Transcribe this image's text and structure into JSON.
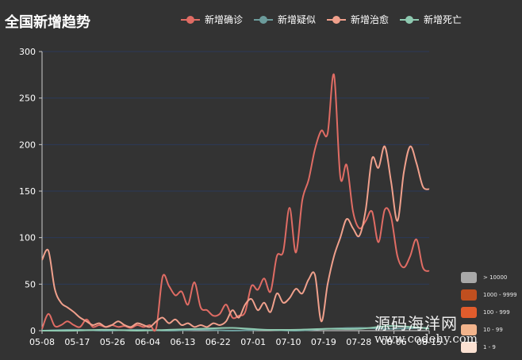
{
  "page": {
    "title": "全国新增趋势",
    "watermark_cn": "源码海洋网",
    "watermark_url": "www.codehy.com"
  },
  "legend": [
    {
      "name": "新增确诊",
      "color": "#e06c64"
    },
    {
      "name": "新增疑似",
      "color": "#6c9c9c"
    },
    {
      "name": "新增治愈",
      "color": "#f0a08c"
    },
    {
      "name": "新增死亡",
      "color": "#8ec9b0"
    }
  ],
  "visual_map": [
    {
      "label": "> 10000",
      "color": "#a8a8a8"
    },
    {
      "label": "1000 - 9999",
      "color": "#c04f1f"
    },
    {
      "label": "100 - 999",
      "color": "#e15c2c"
    },
    {
      "label": "10 - 99",
      "color": "#f2b48c"
    },
    {
      "label": "1 - 9",
      "color": "#fbe1d2"
    }
  ],
  "chart_data": {
    "type": "line",
    "title": "全国新增趋势",
    "categories": [
      "05-08",
      "05-17",
      "05-26",
      "06-04",
      "06-13",
      "06-22",
      "07-01",
      "07-10",
      "07-19",
      "07-28",
      "08-06",
      "08-15"
    ],
    "x_tick_labels": [
      "05-08",
      "05-17",
      "05-26",
      "06-04",
      "06-13",
      "06-22",
      "07-01",
      "07-10",
      "07-19",
      "07-28",
      "08-06",
      "08-15"
    ],
    "ylim": [
      0,
      300
    ],
    "y_ticks": [
      "0",
      "50",
      "100",
      "150",
      "200",
      "250",
      "300"
    ],
    "grid": true,
    "legend_position": "top",
    "series": [
      {
        "name": "新增确诊",
        "color": "#e06c64",
        "values": [
          [
            0,
            2
          ],
          [
            2,
            18
          ],
          [
            4,
            5
          ],
          [
            6,
            6
          ],
          [
            8,
            10
          ],
          [
            10,
            6
          ],
          [
            12,
            4
          ],
          [
            14,
            12
          ],
          [
            16,
            4
          ],
          [
            18,
            6
          ],
          [
            20,
            4
          ],
          [
            22,
            6
          ],
          [
            24,
            4
          ],
          [
            26,
            5
          ],
          [
            28,
            3
          ],
          [
            30,
            6
          ],
          [
            32,
            4
          ],
          [
            34,
            6
          ],
          [
            36,
            3
          ],
          [
            38,
            58
          ],
          [
            40,
            48
          ],
          [
            42,
            38
          ],
          [
            44,
            42
          ],
          [
            46,
            28
          ],
          [
            48,
            52
          ],
          [
            50,
            25
          ],
          [
            52,
            22
          ],
          [
            54,
            16
          ],
          [
            56,
            18
          ],
          [
            58,
            28
          ],
          [
            60,
            14
          ],
          [
            62,
            16
          ],
          [
            64,
            20
          ],
          [
            66,
            48
          ],
          [
            68,
            44
          ],
          [
            70,
            56
          ],
          [
            72,
            42
          ],
          [
            74,
            80
          ],
          [
            76,
            85
          ],
          [
            78,
            132
          ],
          [
            80,
            84
          ],
          [
            82,
            140
          ],
          [
            84,
            162
          ],
          [
            86,
            195
          ],
          [
            88,
            215
          ],
          [
            90,
            212
          ],
          [
            92,
            275
          ],
          [
            94,
            165
          ],
          [
            96,
            178
          ],
          [
            98,
            128
          ],
          [
            100,
            110
          ],
          [
            102,
            118
          ],
          [
            104,
            128
          ],
          [
            106,
            95
          ],
          [
            108,
            130
          ],
          [
            110,
            122
          ],
          [
            112,
            80
          ],
          [
            114,
            68
          ],
          [
            116,
            80
          ],
          [
            118,
            98
          ],
          [
            120,
            68
          ],
          [
            122,
            64
          ]
        ]
      },
      {
        "name": "新增疑似",
        "color": "#6c9c9c",
        "values": [
          [
            0,
            0
          ],
          [
            10,
            1
          ],
          [
            20,
            0
          ],
          [
            30,
            1
          ],
          [
            40,
            0
          ],
          [
            50,
            1
          ],
          [
            60,
            0
          ],
          [
            70,
            1
          ],
          [
            80,
            0
          ],
          [
            90,
            2
          ],
          [
            100,
            3
          ],
          [
            110,
            2
          ],
          [
            120,
            3
          ],
          [
            122,
            2
          ]
        ]
      },
      {
        "name": "新增治愈",
        "color": "#f0a08c",
        "values": [
          [
            0,
            76
          ],
          [
            2,
            86
          ],
          [
            4,
            45
          ],
          [
            6,
            30
          ],
          [
            8,
            25
          ],
          [
            10,
            20
          ],
          [
            12,
            14
          ],
          [
            14,
            10
          ],
          [
            16,
            6
          ],
          [
            18,
            8
          ],
          [
            20,
            4
          ],
          [
            22,
            6
          ],
          [
            24,
            10
          ],
          [
            26,
            6
          ],
          [
            28,
            4
          ],
          [
            30,
            8
          ],
          [
            32,
            6
          ],
          [
            34,
            4
          ],
          [
            36,
            10
          ],
          [
            38,
            14
          ],
          [
            40,
            8
          ],
          [
            42,
            12
          ],
          [
            44,
            6
          ],
          [
            46,
            8
          ],
          [
            48,
            4
          ],
          [
            50,
            6
          ],
          [
            52,
            4
          ],
          [
            54,
            8
          ],
          [
            56,
            6
          ],
          [
            58,
            10
          ],
          [
            60,
            22
          ],
          [
            62,
            14
          ],
          [
            64,
            28
          ],
          [
            66,
            34
          ],
          [
            68,
            22
          ],
          [
            70,
            30
          ],
          [
            72,
            20
          ],
          [
            74,
            40
          ],
          [
            76,
            30
          ],
          [
            78,
            35
          ],
          [
            80,
            45
          ],
          [
            82,
            40
          ],
          [
            84,
            55
          ],
          [
            86,
            60
          ],
          [
            88,
            10
          ],
          [
            90,
            50
          ],
          [
            92,
            80
          ],
          [
            94,
            100
          ],
          [
            96,
            120
          ],
          [
            98,
            110
          ],
          [
            100,
            102
          ],
          [
            102,
            130
          ],
          [
            104,
            185
          ],
          [
            106,
            175
          ],
          [
            108,
            198
          ],
          [
            110,
            160
          ],
          [
            112,
            118
          ],
          [
            114,
            170
          ],
          [
            116,
            198
          ],
          [
            118,
            180
          ],
          [
            120,
            155
          ],
          [
            122,
            152
          ]
        ]
      },
      {
        "name": "新增死亡",
        "color": "#8ec9b0",
        "values": [
          [
            0,
            0
          ],
          [
            10,
            0
          ],
          [
            20,
            1
          ],
          [
            30,
            0
          ],
          [
            40,
            1
          ],
          [
            50,
            2
          ],
          [
            60,
            3
          ],
          [
            70,
            1
          ],
          [
            80,
            1
          ],
          [
            90,
            2
          ],
          [
            100,
            2
          ],
          [
            110,
            5
          ],
          [
            120,
            3
          ],
          [
            122,
            2
          ]
        ]
      }
    ]
  }
}
